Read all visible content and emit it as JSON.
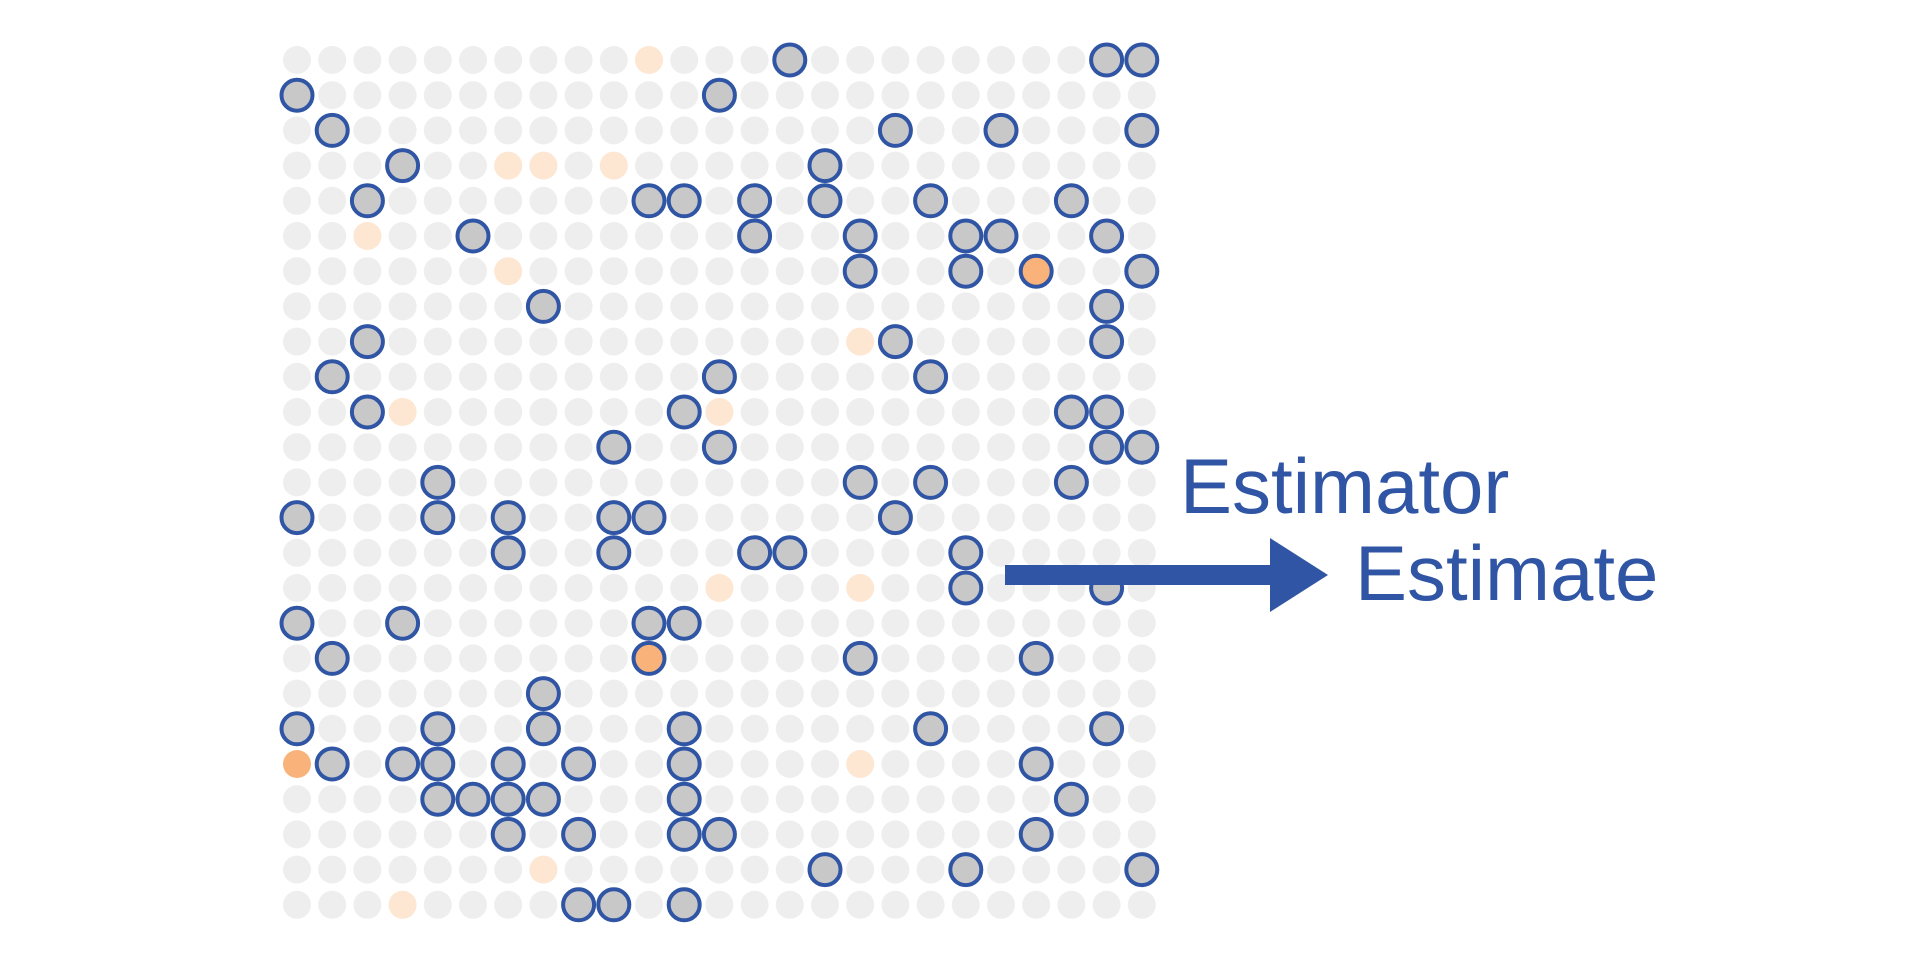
{
  "labels": {
    "estimator": "Estimator",
    "estimate": "Estimate"
  },
  "colors": {
    "background_dot": "#eeeeee",
    "faint_orange": "#fde6d2",
    "orange": "#f9b37a",
    "selected_fill": "#c8c8c8",
    "blue": "#2f55a4"
  },
  "grid": {
    "rows": 25,
    "cols": 25,
    "faint_orange": [
      [
        0,
        10
      ],
      [
        3,
        6
      ],
      [
        3,
        7
      ],
      [
        3,
        9
      ],
      [
        5,
        2
      ],
      [
        6,
        6
      ],
      [
        8,
        16
      ],
      [
        10,
        3
      ],
      [
        10,
        12
      ],
      [
        15,
        12
      ],
      [
        15,
        16
      ],
      [
        18,
        7
      ],
      [
        20,
        16
      ],
      [
        23,
        7
      ],
      [
        24,
        3
      ],
      [
        24,
        9
      ]
    ],
    "orange": [
      [
        6,
        21
      ],
      [
        17,
        10
      ],
      [
        20,
        0
      ]
    ],
    "selected": [
      [
        0,
        14
      ],
      [
        0,
        23
      ],
      [
        0,
        24
      ],
      [
        1,
        0
      ],
      [
        1,
        12
      ],
      [
        2,
        1
      ],
      [
        2,
        17
      ],
      [
        2,
        20
      ],
      [
        2,
        24
      ],
      [
        3,
        3
      ],
      [
        3,
        15
      ],
      [
        4,
        2
      ],
      [
        4,
        10
      ],
      [
        4,
        11
      ],
      [
        4,
        13
      ],
      [
        4,
        15
      ],
      [
        4,
        18
      ],
      [
        4,
        22
      ],
      [
        5,
        5
      ],
      [
        5,
        13
      ],
      [
        5,
        16
      ],
      [
        5,
        19
      ],
      [
        5,
        20
      ],
      [
        5,
        23
      ],
      [
        6,
        16
      ],
      [
        6,
        19
      ],
      [
        6,
        21
      ],
      [
        6,
        24
      ],
      [
        7,
        7
      ],
      [
        7,
        23
      ],
      [
        8,
        2
      ],
      [
        8,
        17
      ],
      [
        8,
        23
      ],
      [
        9,
        1
      ],
      [
        9,
        12
      ],
      [
        9,
        18
      ],
      [
        10,
        2
      ],
      [
        10,
        11
      ],
      [
        10,
        22
      ],
      [
        10,
        23
      ],
      [
        11,
        9
      ],
      [
        11,
        12
      ],
      [
        11,
        23
      ],
      [
        11,
        24
      ],
      [
        12,
        4
      ],
      [
        12,
        16
      ],
      [
        12,
        18
      ],
      [
        12,
        22
      ],
      [
        13,
        0
      ],
      [
        13,
        4
      ],
      [
        13,
        6
      ],
      [
        13,
        9
      ],
      [
        13,
        10
      ],
      [
        13,
        17
      ],
      [
        14,
        6
      ],
      [
        14,
        9
      ],
      [
        14,
        13
      ],
      [
        14,
        14
      ],
      [
        14,
        19
      ],
      [
        15,
        19
      ],
      [
        15,
        23
      ],
      [
        16,
        0
      ],
      [
        16,
        3
      ],
      [
        16,
        10
      ],
      [
        16,
        11
      ],
      [
        17,
        1
      ],
      [
        17,
        10
      ],
      [
        17,
        16
      ],
      [
        17,
        21
      ],
      [
        18,
        7
      ],
      [
        19,
        0
      ],
      [
        19,
        4
      ],
      [
        19,
        7
      ],
      [
        19,
        11
      ],
      [
        19,
        18
      ],
      [
        19,
        23
      ],
      [
        20,
        1
      ],
      [
        20,
        3
      ],
      [
        20,
        4
      ],
      [
        20,
        6
      ],
      [
        20,
        8
      ],
      [
        20,
        11
      ],
      [
        20,
        21
      ],
      [
        21,
        4
      ],
      [
        21,
        5
      ],
      [
        21,
        6
      ],
      [
        21,
        7
      ],
      [
        21,
        11
      ],
      [
        21,
        22
      ],
      [
        22,
        6
      ],
      [
        22,
        8
      ],
      [
        22,
        11
      ],
      [
        22,
        12
      ],
      [
        22,
        21
      ],
      [
        23,
        15
      ],
      [
        23,
        19
      ],
      [
        23,
        24
      ],
      [
        24,
        8
      ],
      [
        24,
        9
      ],
      [
        24,
        11
      ]
    ]
  }
}
